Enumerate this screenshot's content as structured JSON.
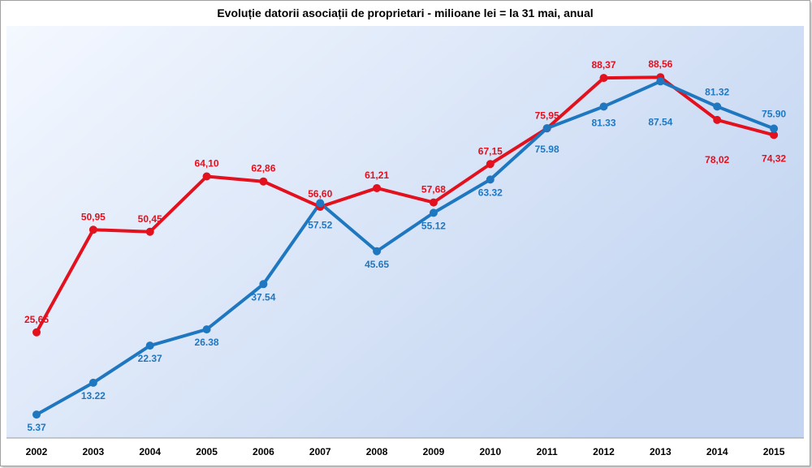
{
  "chart_data": {
    "type": "line",
    "title": "Evoluție datorii asociații de proprietari - milioane lei = la 31 mai, anual",
    "xlabel": "",
    "ylabel": "",
    "categories": [
      "2002",
      "2003",
      "2004",
      "2005",
      "2006",
      "2007",
      "2008",
      "2009",
      "2010",
      "2011",
      "2012",
      "2013",
      "2014",
      "2015"
    ],
    "ylim": [
      0,
      95
    ],
    "grid": false,
    "legend": "none",
    "series": [
      {
        "color": "#e3101e",
        "values": [
          25.65,
          50.95,
          50.45,
          64.1,
          62.86,
          56.6,
          61.21,
          57.68,
          67.15,
          75.95,
          88.37,
          88.56,
          78.02,
          74.32
        ],
        "labels": [
          "25,65",
          "50,95",
          "50,45",
          "64,10",
          "62,86",
          "56,60",
          "61,21",
          "57,68",
          "67,15",
          "75,95",
          "88,37",
          "88,56",
          "78,02",
          "74,32"
        ]
      },
      {
        "color": "#1f77c0",
        "values": [
          5.37,
          13.22,
          22.37,
          26.38,
          37.54,
          57.52,
          45.65,
          55.12,
          63.32,
          75.98,
          81.33,
          87.54,
          81.32,
          75.9
        ],
        "labels": [
          "5.37",
          "13.22",
          "22.37",
          "26.38",
          "37.54",
          "57.52",
          "45.65",
          "55.12",
          "63.32",
          "75.98",
          "81.33",
          "87.54",
          "81.32",
          "75.90"
        ]
      }
    ]
  }
}
